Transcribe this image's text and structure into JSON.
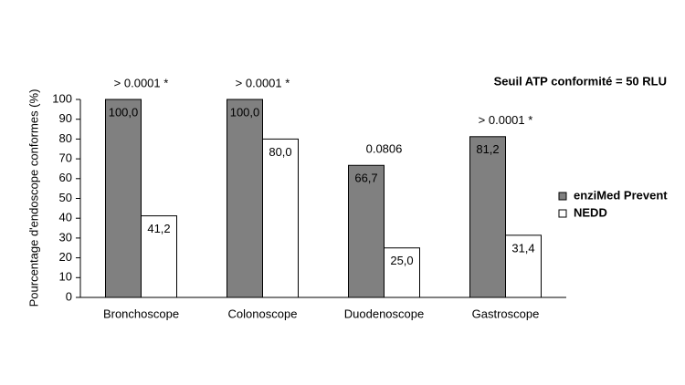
{
  "chart_data": {
    "type": "bar",
    "note": "Seuil ATP conformité = 50 RLU",
    "y_label": "Pourcentage d'endoscope conformes (%)",
    "categories": [
      "Bronchoscope",
      "Colonoscope",
      "Duodenoscope",
      "Gastroscope"
    ],
    "annotations": [
      "> 0.0001 *",
      "> 0.0001 *",
      "0.0806",
      "> 0.0001 *"
    ],
    "series": [
      {
        "name": "enziMed Prevent",
        "color": "#808080",
        "values": [
          100,
          100,
          66.7,
          81.2
        ],
        "value_labels": [
          "100,0",
          "100,0",
          "66,7",
          "81,2"
        ]
      },
      {
        "name": "NEDD",
        "color": "#ffffff",
        "values": [
          41.2,
          80,
          25,
          31.4
        ],
        "value_labels": [
          "41,2",
          "80,0",
          "25,0",
          "31,4"
        ]
      }
    ],
    "ylim": [
      0,
      100
    ],
    "yticks": [
      0,
      10,
      20,
      30,
      40,
      50,
      60,
      70,
      80,
      90,
      100
    ],
    "legend": "right"
  }
}
